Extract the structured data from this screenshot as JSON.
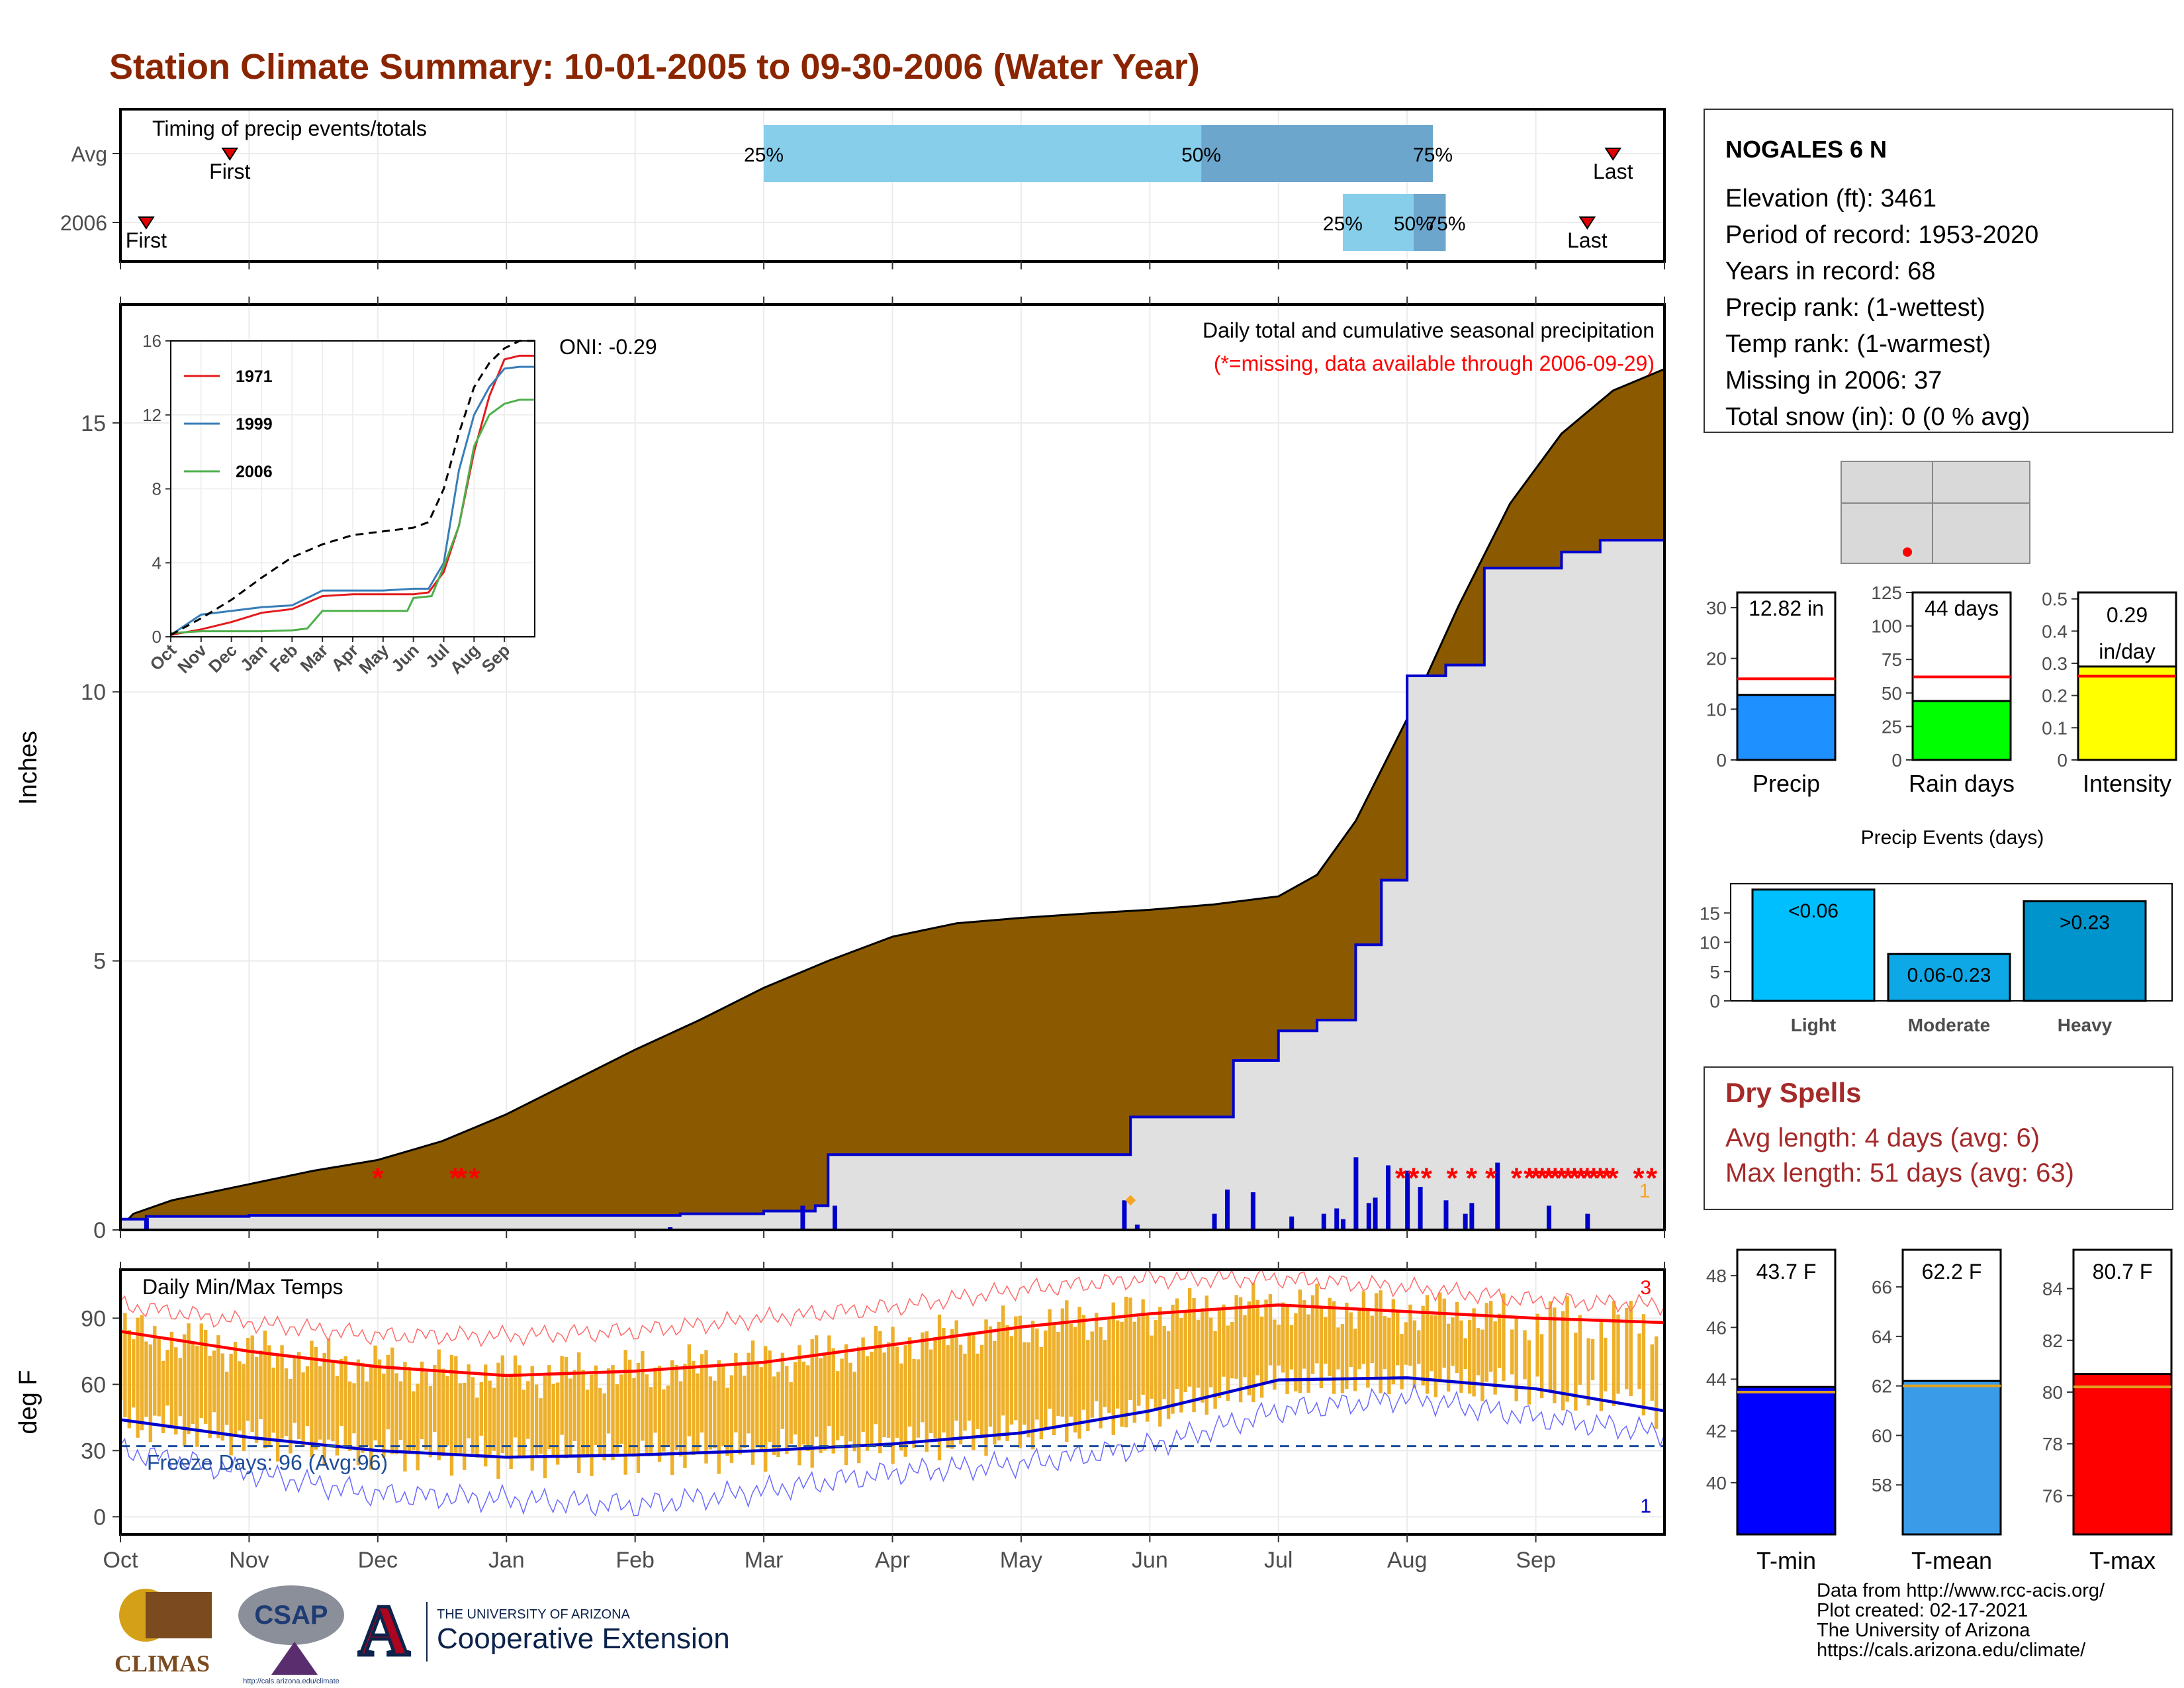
{
  "header": {
    "title": "Station Climate Summary: 10-01-2005 to 09-30-2006 (Water Year)"
  },
  "station": {
    "name": "NOGALES 6 N",
    "lines": [
      "Elevation (ft): 3461",
      "Period of record: 1953-2020",
      "Years in record: 68",
      "Precip rank:  (1-wettest)",
      "Temp rank:  (1-warmest)",
      "Missing in 2006: 37",
      "Total snow (in): 0 (0 % avg)"
    ]
  },
  "footer": {
    "lines": [
      "Data from http://www.rcc-acis.org/",
      "Plot created: 02-17-2021",
      "The University of Arizona",
      "https://cals.arizona.edu/climate/"
    ]
  },
  "logos": {
    "climas": "CLIMAS",
    "csap": "CSAP",
    "csap_url": "http://cals.arizona.edu/climate",
    "ua_small": "THE UNIVERSITY OF ARIZONA",
    "ua_big": "Cooperative Extension"
  },
  "colors": {
    "title": "#8B2500",
    "cumulative_area": "#8B5A00",
    "avg_area": "#E0E0E0",
    "daily_bar": "#0000CC",
    "missing_star": "#FF0000",
    "temp_bar": "#EEB02A",
    "tmax_line": "#FF0000",
    "tmin_line": "#0000CC",
    "freeze_line": "#1F4E9B",
    "timing_light": "#87CEEB",
    "timing_dark": "#6CA6CD",
    "precip_bar": "#1E90FF",
    "raindays_bar": "#00FF00",
    "intensity_bar": "#FFFF00",
    "tmin_bar": "#0000FF",
    "tmean_bar": "#3A9BE8",
    "tmax_bar": "#FF0000",
    "dry_spells": "#A52A2A"
  },
  "chart_data": [
    {
      "id": "timing",
      "type": "bar",
      "title": "Timing of precip events/totals",
      "rows": [
        {
          "label": "Avg",
          "first_label": "First",
          "last_label": "Last",
          "first_month": 0.85,
          "last_month": 11.6,
          "p25": 5.0,
          "p50": 8.4,
          "p75": 10.2,
          "p25_label": "25%",
          "p50_label": "50%",
          "p75_label": "75%"
        },
        {
          "label": "2006",
          "first_label": "First",
          "last_label": "Last",
          "first_month": 0.2,
          "last_month": 11.4,
          "p25": 9.5,
          "p50": 10.05,
          "p75": 10.3,
          "p25_label": "25%",
          "p50_label": "50%",
          "p75_label": "75%"
        }
      ]
    },
    {
      "id": "precip",
      "type": "area",
      "title": "Daily total and cumulative seasonal precipitation",
      "subtitle": "(*=missing, data available through 2006-09-29)",
      "ylabel": "Inches",
      "oni": "ONI: -0.29",
      "ylim": [
        0,
        17.2
      ],
      "yticks": [
        0,
        5,
        10,
        15
      ],
      "xticks": [
        "Oct",
        "Nov",
        "Dec",
        "Jan",
        "Feb",
        "Mar",
        "Apr",
        "May",
        "Jun",
        "Jul",
        "Aug",
        "Sep"
      ],
      "corner_label": "1",
      "avg_cumulative": [
        [
          0,
          0.05
        ],
        [
          0.1,
          0.3
        ],
        [
          0.4,
          0.55
        ],
        [
          1,
          0.85
        ],
        [
          1.5,
          1.1
        ],
        [
          2,
          1.3
        ],
        [
          2.5,
          1.65
        ],
        [
          3,
          2.15
        ],
        [
          3.5,
          2.75
        ],
        [
          4,
          3.35
        ],
        [
          4.5,
          3.9
        ],
        [
          5,
          4.5
        ],
        [
          5.5,
          5.0
        ],
        [
          6,
          5.45
        ],
        [
          6.5,
          5.7
        ],
        [
          7,
          5.8
        ],
        [
          7.5,
          5.88
        ],
        [
          8,
          5.95
        ],
        [
          8.5,
          6.05
        ],
        [
          9,
          6.2
        ],
        [
          9.3,
          6.6
        ],
        [
          9.6,
          7.6
        ],
        [
          10,
          9.5
        ],
        [
          10.4,
          11.6
        ],
        [
          10.8,
          13.5
        ],
        [
          11.2,
          14.8
        ],
        [
          11.6,
          15.6
        ],
        [
          12,
          16.0
        ]
      ],
      "cumulative_2006": [
        [
          0,
          0.2
        ],
        [
          0.2,
          0.25
        ],
        [
          1,
          0.27
        ],
        [
          2,
          0.27
        ],
        [
          3,
          0.27
        ],
        [
          4,
          0.27
        ],
        [
          4.3,
          0.27
        ],
        [
          4.35,
          0.3
        ],
        [
          5.0,
          0.35
        ],
        [
          5.4,
          0.45
        ],
        [
          5.5,
          1.4
        ],
        [
          6.0,
          1.4
        ],
        [
          7,
          1.4
        ],
        [
          7.8,
          1.4
        ],
        [
          7.85,
          2.1
        ],
        [
          8.6,
          2.1
        ],
        [
          8.65,
          3.15
        ],
        [
          9.0,
          3.7
        ],
        [
          9.3,
          3.9
        ],
        [
          9.6,
          5.3
        ],
        [
          9.8,
          6.5
        ],
        [
          10.0,
          10.3
        ],
        [
          10.3,
          10.5
        ],
        [
          10.6,
          12.3
        ],
        [
          11.2,
          12.6
        ],
        [
          11.5,
          12.82
        ],
        [
          12,
          12.82
        ]
      ],
      "daily_bars": [
        [
          0.2,
          0.22
        ],
        [
          4.27,
          0.05
        ],
        [
          5.3,
          0.45
        ],
        [
          5.55,
          0.45
        ],
        [
          7.8,
          0.55
        ],
        [
          7.9,
          0.1
        ],
        [
          8.5,
          0.3
        ],
        [
          8.6,
          0.75
        ],
        [
          8.8,
          0.7
        ],
        [
          9.1,
          0.25
        ],
        [
          9.35,
          0.3
        ],
        [
          9.45,
          0.4
        ],
        [
          9.5,
          0.2
        ],
        [
          9.6,
          1.35
        ],
        [
          9.7,
          0.5
        ],
        [
          9.75,
          0.6
        ],
        [
          9.85,
          1.2
        ],
        [
          10.0,
          1.1
        ],
        [
          10.1,
          0.8
        ],
        [
          10.3,
          0.55
        ],
        [
          10.45,
          0.3
        ],
        [
          10.5,
          0.5
        ],
        [
          10.7,
          1.25
        ],
        [
          11.1,
          0.45
        ],
        [
          11.4,
          0.3
        ]
      ],
      "missing_stars_month": [
        2.0,
        2.6,
        2.65,
        2.75,
        9.95,
        10.05,
        10.15,
        10.35,
        10.5,
        10.65,
        10.85,
        10.95,
        11.0,
        11.05,
        11.1,
        11.15,
        11.2,
        11.25,
        11.3,
        11.35,
        11.4,
        11.45,
        11.5,
        11.55,
        11.6,
        11.8,
        11.9
      ],
      "missing_star_value": 1.0,
      "inset": {
        "yticks": [
          0,
          4,
          8,
          12,
          16
        ],
        "xticks": [
          "Oct",
          "Nov",
          "Dec",
          "Jan",
          "Feb",
          "Mar",
          "Apr",
          "May",
          "Jun",
          "Jul",
          "Aug",
          "Sep"
        ],
        "series": [
          {
            "name": "1971",
            "color": "#E41A1C",
            "points": [
              [
                0,
                0.1
              ],
              [
                1,
                0.4
              ],
              [
                2,
                0.8
              ],
              [
                3,
                1.3
              ],
              [
                4,
                1.5
              ],
              [
                5,
                2.2
              ],
              [
                6,
                2.3
              ],
              [
                7,
                2.3
              ],
              [
                8,
                2.3
              ],
              [
                8.5,
                2.4
              ],
              [
                9,
                3.5
              ],
              [
                9.5,
                6.0
              ],
              [
                10,
                10.0
              ],
              [
                10.5,
                13.0
              ],
              [
                11,
                15.0
              ],
              [
                11.5,
                15.2
              ],
              [
                12,
                15.2
              ]
            ]
          },
          {
            "name": "1999",
            "color": "#377EB8",
            "points": [
              [
                0,
                0.1
              ],
              [
                1,
                1.2
              ],
              [
                2,
                1.4
              ],
              [
                3,
                1.6
              ],
              [
                4,
                1.7
              ],
              [
                5,
                2.5
              ],
              [
                6,
                2.5
              ],
              [
                7,
                2.5
              ],
              [
                8,
                2.6
              ],
              [
                8.5,
                2.6
              ],
              [
                9,
                4.0
              ],
              [
                9.5,
                9.0
              ],
              [
                10,
                12.0
              ],
              [
                10.5,
                13.5
              ],
              [
                11,
                14.5
              ],
              [
                11.5,
                14.6
              ],
              [
                12,
                14.6
              ]
            ]
          },
          {
            "name": "2006",
            "color": "#4DAF4A",
            "points": [
              [
                0,
                0.2
              ],
              [
                1,
                0.3
              ],
              [
                2,
                0.3
              ],
              [
                3,
                0.3
              ],
              [
                4,
                0.35
              ],
              [
                4.5,
                0.45
              ],
              [
                5,
                1.4
              ],
              [
                6,
                1.4
              ],
              [
                7,
                1.4
              ],
              [
                7.8,
                1.4
              ],
              [
                8,
                2.1
              ],
              [
                8.6,
                2.2
              ],
              [
                9,
                3.8
              ],
              [
                9.5,
                6.0
              ],
              [
                10,
                10.3
              ],
              [
                10.5,
                12.0
              ],
              [
                11,
                12.6
              ],
              [
                11.5,
                12.82
              ],
              [
                12,
                12.82
              ]
            ]
          },
          {
            "name": "",
            "color": "#000000",
            "dashed": true,
            "points": [
              [
                0,
                0.1
              ],
              [
                1,
                1.0
              ],
              [
                2,
                2.0
              ],
              [
                3,
                3.2
              ],
              [
                4,
                4.3
              ],
              [
                5,
                5.0
              ],
              [
                6,
                5.5
              ],
              [
                7,
                5.7
              ],
              [
                8,
                5.9
              ],
              [
                8.5,
                6.2
              ],
              [
                9,
                8.0
              ],
              [
                9.5,
                11.0
              ],
              [
                10,
                13.5
              ],
              [
                10.5,
                14.8
              ],
              [
                11,
                15.6
              ],
              [
                11.5,
                16.0
              ],
              [
                12,
                16.0
              ]
            ]
          }
        ]
      }
    },
    {
      "id": "temps",
      "type": "line",
      "title": "Daily Min/Max Temps",
      "ylabel": "deg F",
      "ylim": [
        -8,
        112
      ],
      "yticks": [
        0,
        30,
        60,
        90
      ],
      "freeze_label": "Freeze Days: 96 (Avg:96)",
      "freeze_value": 32,
      "top_corner_label": "3",
      "bottom_corner_label": "1",
      "avg_tmax": [
        [
          0,
          84
        ],
        [
          1,
          75
        ],
        [
          2,
          68
        ],
        [
          3,
          64
        ],
        [
          4,
          66
        ],
        [
          5,
          70
        ],
        [
          6,
          78
        ],
        [
          7,
          86
        ],
        [
          8,
          92
        ],
        [
          9,
          96
        ],
        [
          10,
          93
        ],
        [
          11,
          90
        ],
        [
          12,
          88
        ]
      ],
      "avg_tmin": [
        [
          0,
          44
        ],
        [
          1,
          36
        ],
        [
          2,
          30
        ],
        [
          3,
          27
        ],
        [
          4,
          28
        ],
        [
          5,
          30
        ],
        [
          6,
          33
        ],
        [
          7,
          38
        ],
        [
          8,
          48
        ],
        [
          9,
          62
        ],
        [
          10,
          63
        ],
        [
          11,
          58
        ],
        [
          12,
          48
        ]
      ],
      "record_high": [
        [
          0,
          96
        ],
        [
          1,
          88
        ],
        [
          2,
          82
        ],
        [
          3,
          82
        ],
        [
          4,
          84
        ],
        [
          5,
          90
        ],
        [
          6,
          95
        ],
        [
          7,
          103
        ],
        [
          8,
          108
        ],
        [
          9,
          108
        ],
        [
          10,
          104
        ],
        [
          11,
          98
        ],
        [
          12,
          96
        ]
      ],
      "record_low": [
        [
          0,
          30
        ],
        [
          1,
          20
        ],
        [
          2,
          10
        ],
        [
          3,
          8
        ],
        [
          4,
          5
        ],
        [
          5,
          12
        ],
        [
          6,
          20
        ],
        [
          7,
          24
        ],
        [
          8,
          32
        ],
        [
          9,
          48
        ],
        [
          10,
          54
        ],
        [
          11,
          45
        ],
        [
          12,
          38
        ]
      ],
      "xticks": [
        "Oct",
        "Nov",
        "Dec",
        "Jan",
        "Feb",
        "Mar",
        "Apr",
        "May",
        "Jun",
        "Jul",
        "Aug",
        "Sep"
      ]
    },
    {
      "id": "precip_totals",
      "type": "bar",
      "panels": [
        {
          "label": "Precip",
          "value": 12.82,
          "value_label": "12.82 in",
          "avg": 16.0,
          "ylim": [
            0,
            33
          ],
          "yticks": [
            0,
            10,
            20,
            30
          ]
        },
        {
          "label": "Rain days",
          "value": 44,
          "value_label": "44 days",
          "avg": 62,
          "ylim": [
            0,
            125
          ],
          "yticks": [
            0,
            25,
            50,
            75,
            100,
            125
          ]
        },
        {
          "label": "Intensity",
          "value": 0.29,
          "value_label": "0.29",
          "value_label2": "in/day",
          "avg": 0.26,
          "ylim": [
            0,
            0.52
          ],
          "yticks": [
            0.0,
            0.1,
            0.2,
            0.3,
            0.4,
            0.5
          ]
        }
      ]
    },
    {
      "id": "precip_events",
      "type": "bar",
      "title": "Precip Events (days)",
      "categories": [
        "Light",
        "Moderate",
        "Heavy"
      ],
      "values": [
        19,
        8,
        17
      ],
      "bar_labels": [
        "<0.06",
        "0.06-0.23",
        ">0.23"
      ],
      "ylim": [
        0,
        20
      ],
      "yticks": [
        0,
        5,
        10,
        15
      ]
    },
    {
      "id": "temp_means",
      "type": "bar",
      "panels": [
        {
          "label": "T-min",
          "value": 43.7,
          "value_label": "43.7 F",
          "avg": 43.5,
          "ylim": [
            38,
            49
          ],
          "yticks": [
            40,
            42,
            44,
            46,
            48
          ]
        },
        {
          "label": "T-mean",
          "value": 62.2,
          "value_label": "62.2 F",
          "avg": 62.0,
          "ylim": [
            56,
            67.5
          ],
          "yticks": [
            58,
            60,
            62,
            64,
            66
          ]
        },
        {
          "label": "T-max",
          "value": 80.7,
          "value_label": "80.7 F",
          "avg": 80.2,
          "ylim": [
            74.5,
            85.5
          ],
          "yticks": [
            76,
            78,
            80,
            82,
            84
          ]
        }
      ]
    }
  ],
  "dry_spells": {
    "title": "Dry Spells",
    "avg_line": "Avg length: 4 days (avg: 6)",
    "max_line": "Max length: 51 days (avg: 63)"
  }
}
